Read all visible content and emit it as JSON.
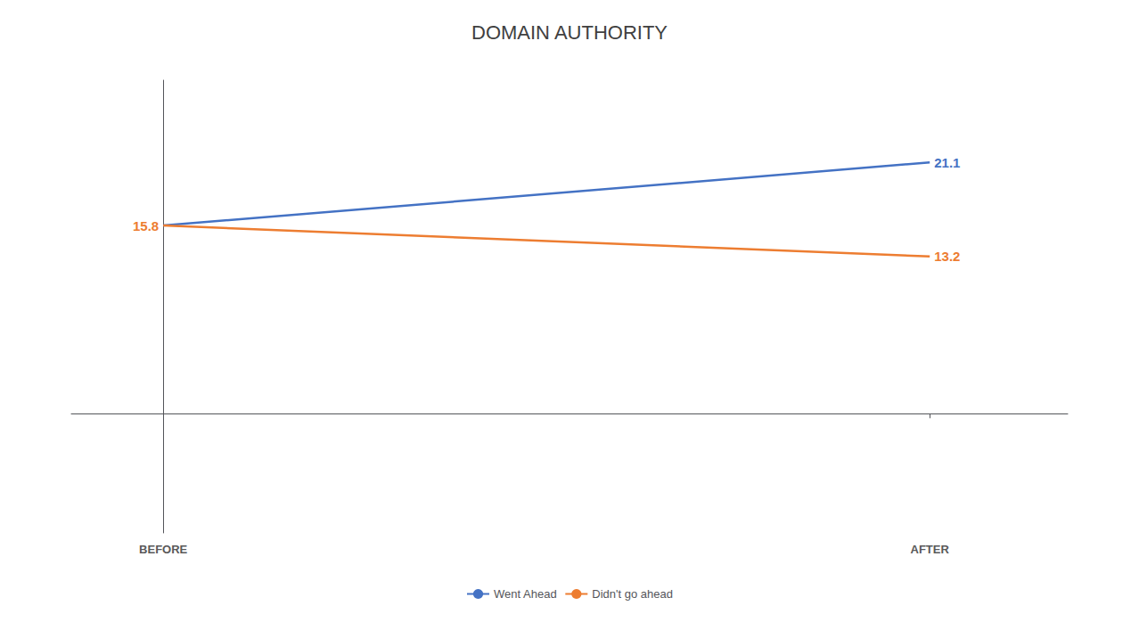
{
  "chart_data": {
    "type": "line",
    "title": "DOMAIN AUTHORITY",
    "x": [
      0,
      1
    ],
    "series": [
      {
        "name": "Went Ahead",
        "color": "#4472C4",
        "values": [
          15.8,
          21.1
        ],
        "value_labels": [
          null,
          "21.1"
        ]
      },
      {
        "name": "Didn't go ahead",
        "color": "#ED7D31",
        "values": [
          15.8,
          13.2
        ]
      }
    ],
    "xlim": [
      -0.12,
      1.18
    ],
    "xticks": [
      {
        "value": 0,
        "label": "BEFORE"
      },
      {
        "value": 1,
        "label": "AFTER"
      }
    ],
    "ylim": [
      -10,
      28
    ],
    "tick_labels": "x",
    "grid": false,
    "legend": "bottom",
    "data_labels": true
  }
}
